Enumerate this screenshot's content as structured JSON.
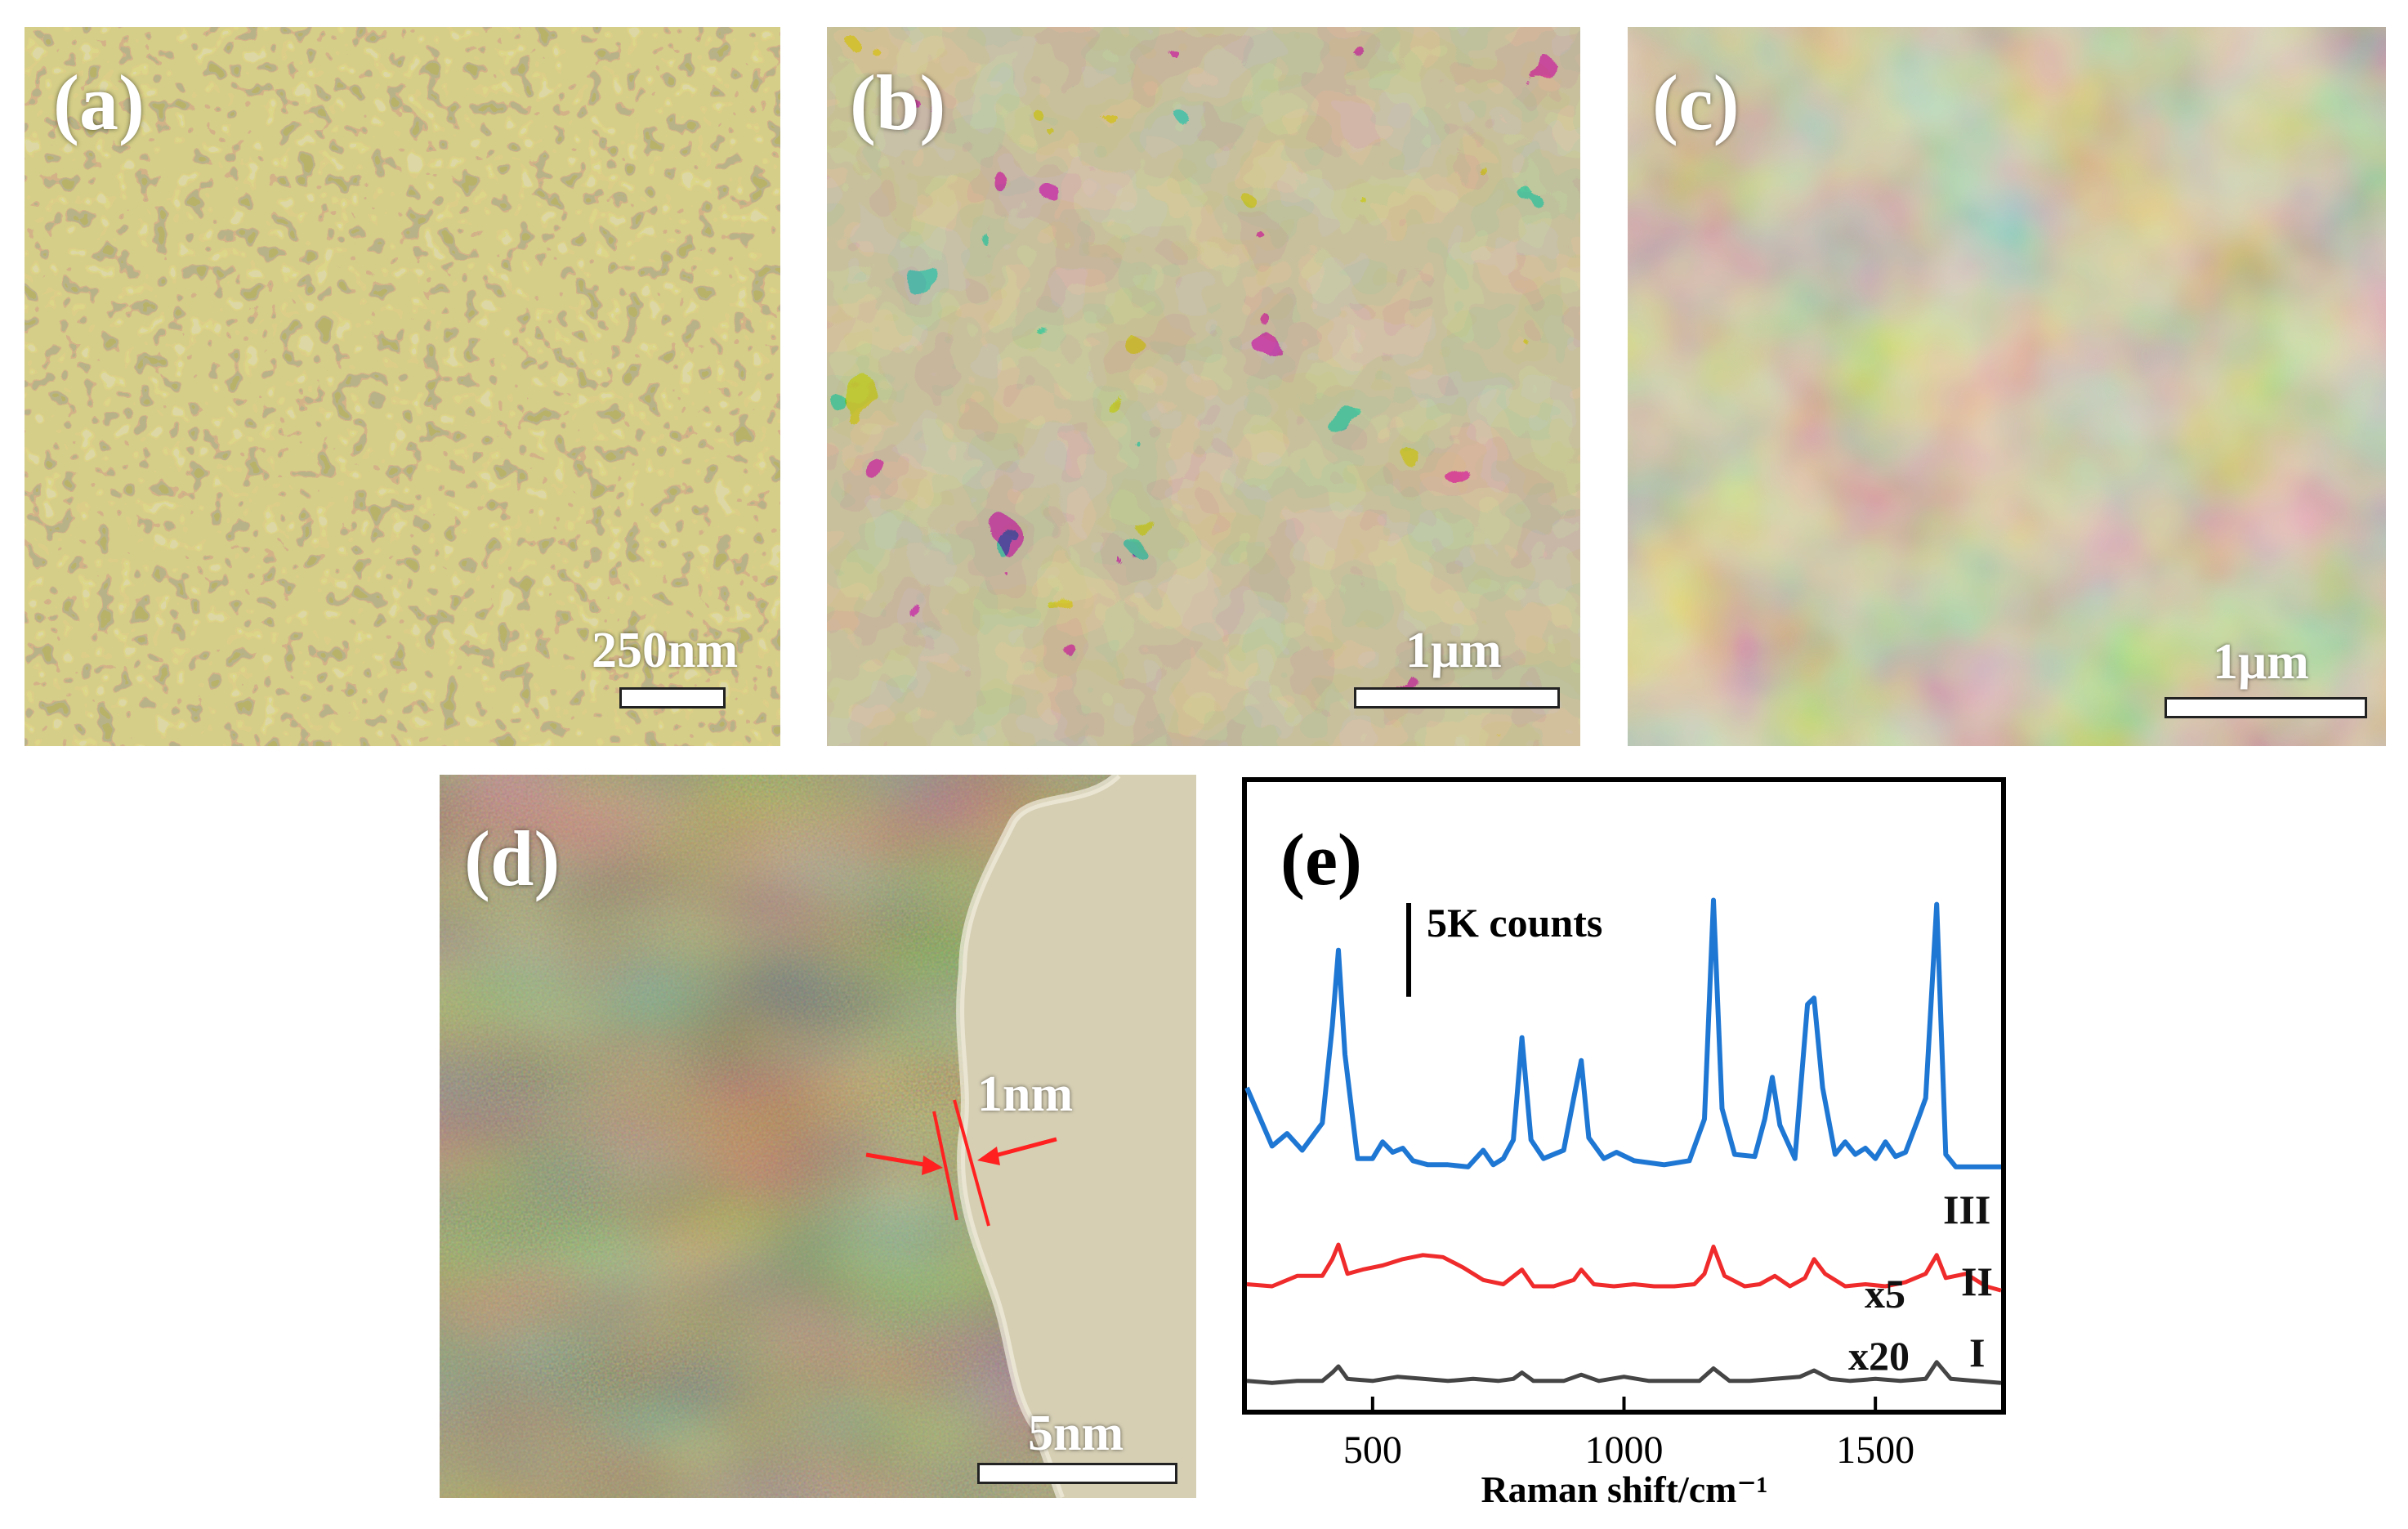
{
  "panels": {
    "a": {
      "label": "(a)",
      "scale": "250nm"
    },
    "b": {
      "label": "(b)",
      "scale": "1μm"
    },
    "c": {
      "label": "(c)",
      "scale": "1μm"
    },
    "d": {
      "label": "(d)",
      "scale": "5nm",
      "thickness_label": "1nm"
    },
    "e": {
      "label": "(e)",
      "scale_label": "5K counts"
    }
  },
  "colors": {
    "sem_base": "#a69a6a",
    "series_III": "#1f77d4",
    "series_II": "#f02b2b",
    "series_I": "#454545",
    "arrow": "#ff2020"
  },
  "chart_data": {
    "type": "line",
    "xlabel": "Raman shift/cm⁻¹",
    "ylabel": "",
    "xlim": [
      250,
      1750
    ],
    "xticks": [
      500,
      1000,
      1500
    ],
    "grid": false,
    "series": [
      {
        "name": "III",
        "x": [
          250,
          300,
          330,
          360,
          400,
          420,
          432,
          445,
          470,
          500,
          520,
          540,
          560,
          580,
          610,
          650,
          690,
          720,
          740,
          760,
          780,
          797,
          815,
          840,
          880,
          900,
          915,
          930,
          960,
          985,
          1020,
          1080,
          1130,
          1160,
          1178,
          1195,
          1220,
          1260,
          1280,
          1295,
          1310,
          1340,
          1365,
          1378,
          1395,
          1420,
          1440,
          1460,
          1480,
          1500,
          1520,
          1540,
          1560,
          1585,
          1600,
          1622,
          1640,
          1660,
          1700,
          1750
        ],
        "y": [
          8.0,
          5.2,
          5.8,
          5.0,
          6.3,
          11.0,
          14.6,
          9.6,
          4.6,
          4.6,
          5.4,
          4.9,
          5.1,
          4.5,
          4.3,
          4.3,
          4.2,
          5.0,
          4.3,
          4.6,
          5.5,
          10.4,
          5.5,
          4.6,
          5.0,
          7.5,
          9.3,
          5.6,
          4.6,
          4.9,
          4.5,
          4.3,
          4.5,
          6.5,
          17.0,
          7.0,
          4.8,
          4.7,
          6.5,
          8.5,
          6.2,
          4.6,
          12.0,
          12.3,
          8.0,
          4.8,
          5.4,
          4.8,
          5.1,
          4.6,
          5.4,
          4.7,
          4.9,
          6.5,
          7.5,
          16.8,
          4.8,
          4.2,
          4.2,
          4.2
        ]
      },
      {
        "name": "II",
        "x": [
          250,
          300,
          350,
          400,
          420,
          432,
          450,
          480,
          520,
          560,
          600,
          640,
          680,
          720,
          760,
          797,
          820,
          860,
          900,
          915,
          940,
          980,
          1020,
          1060,
          1100,
          1140,
          1160,
          1178,
          1200,
          1240,
          1270,
          1300,
          1330,
          1360,
          1378,
          1400,
          1440,
          1480,
          1520,
          1560,
          1600,
          1622,
          1640,
          1680,
          1720,
          1750
        ],
        "y": [
          2.1,
          2.0,
          2.5,
          2.5,
          3.3,
          4.0,
          2.6,
          2.8,
          3.0,
          3.3,
          3.5,
          3.4,
          2.9,
          2.3,
          2.1,
          2.8,
          2.0,
          2.0,
          2.3,
          2.8,
          2.1,
          2.0,
          2.1,
          2.0,
          2.0,
          2.1,
          2.6,
          3.9,
          2.5,
          2.0,
          2.1,
          2.5,
          2.0,
          2.4,
          3.3,
          2.6,
          2.0,
          2.1,
          2.0,
          2.2,
          2.6,
          3.5,
          2.4,
          2.6,
          2.0,
          1.8
        ]
      },
      {
        "name": "I",
        "x": [
          250,
          300,
          350,
          400,
          420,
          432,
          450,
          500,
          550,
          600,
          650,
          700,
          750,
          780,
          797,
          820,
          880,
          915,
          950,
          1000,
          1050,
          1100,
          1150,
          1178,
          1210,
          1250,
          1300,
          1350,
          1378,
          1410,
          1450,
          1500,
          1550,
          1600,
          1622,
          1650,
          1700,
          1750
        ],
        "y": [
          0.4,
          0.3,
          0.4,
          0.4,
          0.8,
          1.1,
          0.5,
          0.4,
          0.6,
          0.5,
          0.4,
          0.5,
          0.4,
          0.5,
          0.8,
          0.4,
          0.4,
          0.7,
          0.4,
          0.6,
          0.4,
          0.4,
          0.4,
          1.0,
          0.4,
          0.4,
          0.5,
          0.6,
          0.9,
          0.5,
          0.4,
          0.5,
          0.4,
          0.5,
          1.3,
          0.5,
          0.4,
          0.3
        ]
      }
    ],
    "annotations": [
      {
        "text": "III",
        "series": "III"
      },
      {
        "text": "II",
        "series": "II"
      },
      {
        "text": "I",
        "series": "I"
      },
      {
        "text": "x5",
        "series": "II"
      },
      {
        "text": "x20",
        "series": "I"
      }
    ],
    "scale_bar_counts": 5
  }
}
